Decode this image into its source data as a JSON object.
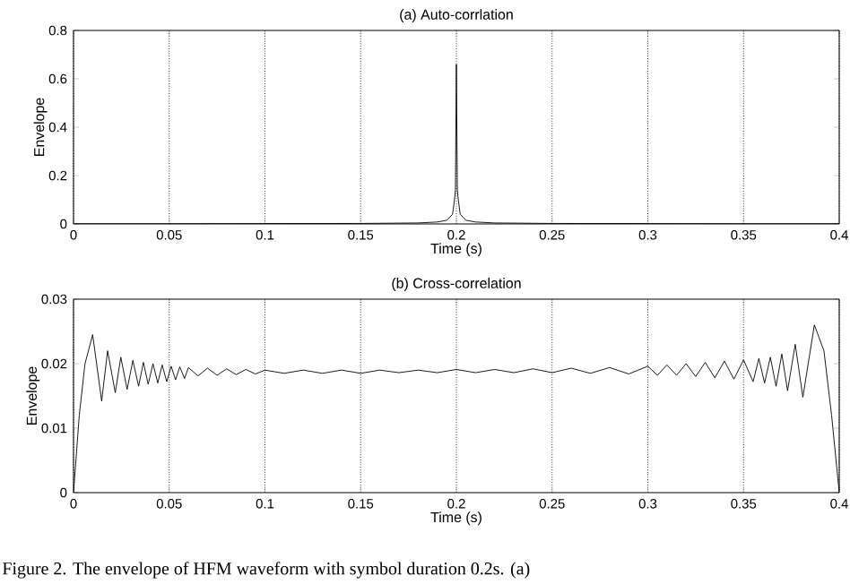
{
  "chart_data": [
    {
      "type": "line",
      "title": "(a) Auto-corrlation",
      "xlabel": "Time (s)",
      "ylabel": "Envelope",
      "xlim": [
        0,
        0.4
      ],
      "ylim": [
        0,
        0.8
      ],
      "xticks": [
        0,
        0.05,
        0.1,
        0.15,
        0.2,
        0.25,
        0.3,
        0.35,
        0.4
      ],
      "yticks": [
        0,
        0.2,
        0.4,
        0.6,
        0.8
      ],
      "grid": "x",
      "series": [
        {
          "color": "#000000",
          "x": [
            0,
            0.05,
            0.1,
            0.15,
            0.18,
            0.19,
            0.195,
            0.198,
            0.199,
            0.1995,
            0.2,
            0.2005,
            0.201,
            0.202,
            0.205,
            0.21,
            0.22,
            0.25,
            0.3,
            0.35,
            0.4
          ],
          "values": [
            0.001,
            0.001,
            0.0015,
            0.002,
            0.004,
            0.008,
            0.015,
            0.04,
            0.1,
            0.14,
            0.66,
            0.14,
            0.1,
            0.04,
            0.015,
            0.008,
            0.004,
            0.002,
            0.0015,
            0.001,
            0.001
          ]
        }
      ]
    },
    {
      "type": "line",
      "title": "(b) Cross-correlation",
      "xlabel": "Time (s)",
      "ylabel": "Envelope",
      "xlim": [
        0,
        0.4
      ],
      "ylim": [
        0,
        0.03
      ],
      "xticks": [
        0,
        0.05,
        0.1,
        0.15,
        0.2,
        0.25,
        0.3,
        0.35,
        0.4
      ],
      "yticks": [
        0,
        0.01,
        0.02,
        0.03
      ],
      "grid": "x",
      "annotations": [
        "Figure 2. The envelope of HFM waveform with symbol duration 0.2s. (a)"
      ],
      "series": [
        {
          "color": "#000000",
          "x": [
            0,
            0.003,
            0.006,
            0.01,
            0.0147,
            0.0178,
            0.0218,
            0.0247,
            0.028,
            0.031,
            0.034,
            0.0365,
            0.039,
            0.0415,
            0.044,
            0.0463,
            0.0487,
            0.051,
            0.0533,
            0.0555,
            0.058,
            0.06,
            0.065,
            0.07,
            0.075,
            0.08,
            0.085,
            0.09,
            0.095,
            0.1,
            0.11,
            0.12,
            0.13,
            0.14,
            0.15,
            0.16,
            0.17,
            0.18,
            0.19,
            0.2,
            0.21,
            0.22,
            0.23,
            0.24,
            0.25,
            0.26,
            0.27,
            0.28,
            0.29,
            0.3,
            0.305,
            0.31,
            0.315,
            0.32,
            0.325,
            0.33,
            0.335,
            0.34,
            0.345,
            0.35,
            0.355,
            0.358,
            0.361,
            0.364,
            0.367,
            0.37,
            0.373,
            0.377,
            0.381,
            0.387,
            0.392,
            0.396,
            0.4
          ],
          "values": [
            0,
            0.012,
            0.02,
            0.0245,
            0.0142,
            0.022,
            0.0155,
            0.021,
            0.016,
            0.0205,
            0.0165,
            0.0202,
            0.0168,
            0.02,
            0.017,
            0.0198,
            0.0172,
            0.0196,
            0.0175,
            0.0195,
            0.0177,
            0.0194,
            0.0181,
            0.0193,
            0.0182,
            0.0192,
            0.0183,
            0.0191,
            0.0184,
            0.019,
            0.0185,
            0.019,
            0.0185,
            0.019,
            0.0185,
            0.019,
            0.0186,
            0.019,
            0.0186,
            0.0191,
            0.0186,
            0.0191,
            0.0186,
            0.0192,
            0.0186,
            0.0193,
            0.0185,
            0.0194,
            0.0184,
            0.0196,
            0.0182,
            0.0198,
            0.0182,
            0.02,
            0.018,
            0.0202,
            0.0178,
            0.0204,
            0.0176,
            0.0206,
            0.0172,
            0.0208,
            0.017,
            0.021,
            0.0165,
            0.0215,
            0.0158,
            0.023,
            0.0148,
            0.026,
            0.022,
            0.012,
            0
          ]
        }
      ]
    }
  ]
}
